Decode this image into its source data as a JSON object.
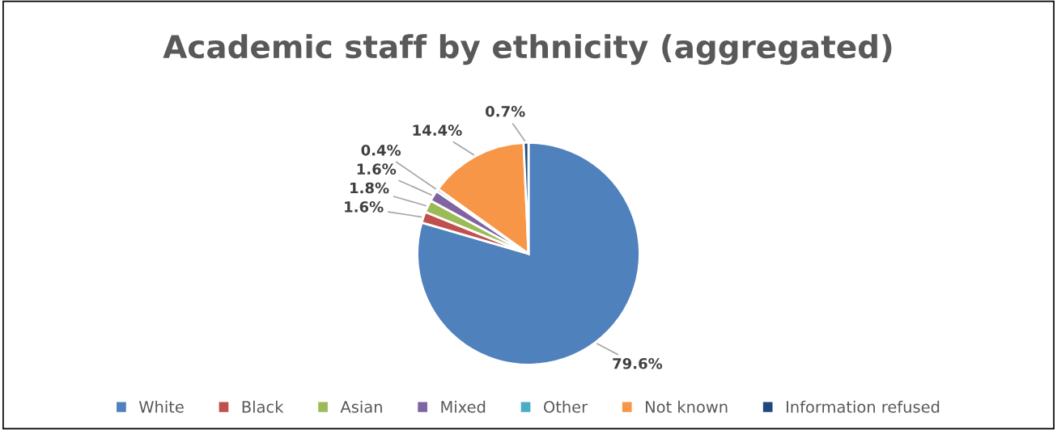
{
  "chart_data": {
    "type": "pie",
    "title": "Academic staff by ethnicity (aggregated)",
    "categories": [
      "White",
      "Black",
      "Asian",
      "Mixed",
      "Other",
      "Not known",
      "Information refused"
    ],
    "values": [
      79.6,
      1.6,
      1.8,
      1.6,
      0.4,
      14.4,
      0.7
    ],
    "colors": [
      "#4f81bd",
      "#c0504d",
      "#9bbb59",
      "#8064a2",
      "#4bacc6",
      "#f79646",
      "#1f497d"
    ],
    "value_labels": [
      "79.6%",
      "1.6%",
      "1.8%",
      "1.6%",
      "0.4%",
      "14.4%",
      "0.7%"
    ],
    "legend": "bottom"
  }
}
